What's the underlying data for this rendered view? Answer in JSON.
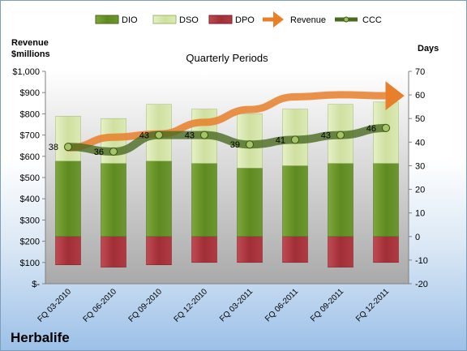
{
  "chart_data": {
    "type": "bar",
    "title": "Quarterly Periods",
    "company": "Herbalife",
    "categories": [
      "FQ 03-2010",
      "FQ 06-2010",
      "FQ 09-2010",
      "FQ 12-2010",
      "FQ 03-2011",
      "FQ 06-2011",
      "FQ 09-2011",
      "FQ 12-2011"
    ],
    "left_axis": {
      "label": "Revenue\n$millions",
      "range": [
        0,
        1000
      ],
      "ticks": [
        "$-",
        "$100",
        "$200",
        "$300",
        "$400",
        "$500",
        "$600",
        "$700",
        "$800",
        "$900",
        "$1,000"
      ]
    },
    "right_axis": {
      "label": "Days",
      "range": [
        -20,
        70
      ],
      "ticks": [
        "-20",
        "-10",
        "0",
        "10",
        "20",
        "30",
        "40",
        "50",
        "60",
        "70"
      ]
    },
    "legend": {
      "position": "top",
      "entries": [
        "DIO",
        "DSO",
        "DPO",
        "Revenue",
        "CCC"
      ]
    },
    "colors": {
      "DIO": "#6b8e2c",
      "DSO": "#d8e8b0",
      "DPO": "#b03a42",
      "Revenue": "#e87f2a",
      "CCC": "#4a6a20"
    },
    "series": [
      {
        "name": "DIO",
        "axis": "right",
        "values": [
          32,
          31,
          32,
          31,
          29,
          30,
          31,
          31
        ]
      },
      {
        "name": "DSO",
        "axis": "right",
        "values": [
          19,
          19,
          24,
          23,
          23,
          24,
          25,
          26
        ]
      },
      {
        "name": "DPO",
        "axis": "right",
        "values": [
          -12,
          -13,
          -12,
          -11,
          -11,
          -11,
          -13,
          -11
        ]
      },
      {
        "name": "CCC",
        "axis": "right",
        "values": [
          38,
          36,
          43,
          43,
          39,
          41,
          43,
          46
        ],
        "labels": [
          "38",
          "36",
          "43",
          "43",
          "39",
          "41",
          "43",
          "46"
        ]
      },
      {
        "name": "Revenue",
        "axis": "left",
        "values": [
          640,
          690,
          705,
          760,
          820,
          880,
          890,
          885
        ]
      }
    ]
  }
}
